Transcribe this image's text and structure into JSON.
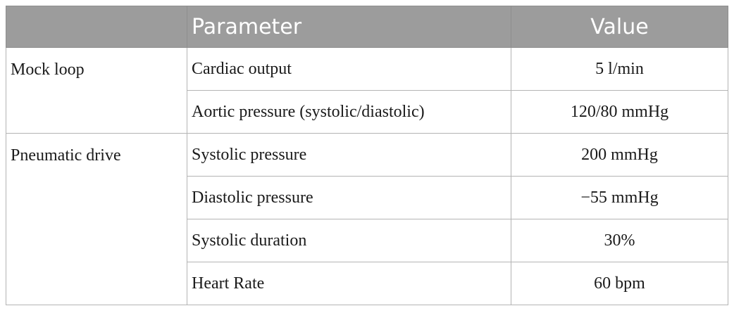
{
  "table": {
    "header": [
      "Parameter",
      "Value"
    ],
    "groups": [
      {
        "label": "Mock loop",
        "rows": [
          [
            "Cardiac output",
            "5 l/min"
          ],
          [
            "Aortic pressure (systolic/diastolic)",
            "120/80 mmHg"
          ]
        ]
      },
      {
        "label": "Pneumatic drive",
        "rows": [
          [
            "Systolic pressure",
            "200 mmHg"
          ],
          [
            "Diastolic pressure",
            "−55 mmHg"
          ],
          [
            "Systolic duration",
            "30%"
          ],
          [
            "Heart Rate",
            "60 bpm"
          ]
        ]
      }
    ]
  }
}
